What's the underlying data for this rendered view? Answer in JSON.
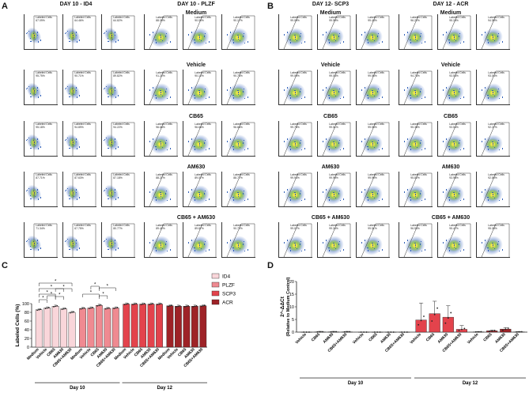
{
  "panels": {
    "A": {
      "letter": "A",
      "groups": [
        {
          "title": "DAY 10 - ID4",
          "mode": "a",
          "rows": [
            [
              "67.09%",
              "64.46%",
              "64.82%"
            ],
            [
              "95.75%",
              "90.71%",
              "89.82%"
            ],
            [
              "95.18%",
              "94.89%",
              "94.22%"
            ],
            [
              "87.71%",
              "87.63%",
              "87.18%"
            ],
            [
              "71.34%",
              "67.75%",
              "80.77%"
            ]
          ]
        },
        {
          "title": "DAY 10 - PLZF",
          "mode": "b",
          "rows": [
            [
              "88.09%",
              "90.00%",
              "90.17%"
            ],
            [
              "91.22%",
              "90.12%",
              "90.73%"
            ],
            [
              "96.66%",
              "96.66%",
              "96.66%"
            ],
            [
              "88.27%",
              "89.07%",
              "88.77%"
            ],
            [
              "89.42%",
              "89.87%",
              "90.72%"
            ]
          ]
        }
      ]
    },
    "B": {
      "letter": "B",
      "groups": [
        {
          "title": "DAY 12- SCP3",
          "mode": "b",
          "rows": [
            [
              "99.09%",
              "99.99%",
              "99.43%"
            ],
            [
              "99.09%",
              "99.03%",
              "99.55%"
            ],
            [
              "99.78%",
              "99.51%",
              "99.55%"
            ],
            [
              "99.94%",
              "99.99%",
              "99.99%"
            ],
            [
              "99.07%",
              "99.34%",
              "99.51%"
            ]
          ]
        },
        {
          "title": "DAY 12 - ACR",
          "mode": "b",
          "rows": [
            [
              "96.22%",
              "95.15%",
              "94.59%"
            ],
            [
              "94.73%",
              "93.53%",
              "93.04%"
            ],
            [
              "95.38%",
              "93.54%",
              "92.27%"
            ],
            [
              "95.82%",
              "93.98%",
              "92.80%"
            ],
            [
              "96.53%",
              "95.47%",
              "95.05%"
            ]
          ]
        }
      ]
    },
    "C": {
      "letter": "C"
    },
    "D": {
      "letter": "D"
    }
  },
  "conditions": [
    "Medium",
    "Vehicle",
    "CB65",
    "AM630",
    "CB65 + AM630"
  ],
  "gate_label": "Labeled Cells",
  "colors": {
    "ID4": "#f9d6da",
    "PLZF": "#ef8a91",
    "SCP3": "#e3434c",
    "ACR": "#9e2327",
    "flow_blue": "#2f5fb8",
    "flow_green": "#9fd233",
    "flow_yellow": "#f4e64a"
  },
  "chart_data": [
    {
      "type": "bar",
      "panel": "C",
      "ylabel": "Labeled Cells (%)",
      "ylim": [
        0,
        100
      ],
      "yticks": [
        "0",
        "20",
        "40",
        "60",
        "80",
        "100"
      ],
      "legend": [
        "ID4",
        "PLZF",
        "SCP3",
        "ACR"
      ],
      "categories": [
        "Medium",
        "Vehicle",
        "CB65",
        "AM630",
        "CB65+AM630"
      ],
      "groups": [
        {
          "label": "Day 10",
          "series": [
            {
              "name": "ID4",
              "values": [
                86,
                90,
                94,
                88,
                80
              ]
            },
            {
              "name": "PLZF",
              "values": [
                89,
                90,
                96,
                89,
                90
              ]
            }
          ]
        },
        {
          "label": "Day 12",
          "series": [
            {
              "name": "SCP3",
              "values": [
                99,
                99,
                99,
                99,
                99
              ]
            },
            {
              "name": "ACR",
              "values": [
                95,
                94,
                94,
                94,
                95
              ]
            }
          ]
        }
      ],
      "significance_marker": "*"
    },
    {
      "type": "bar",
      "panel": "D",
      "ylabel": "2^-ΔΔCt",
      "ylabel2": "(Relative to Medium Control)",
      "ylim": [
        0,
        20
      ],
      "yticks": [
        "0",
        "5",
        "10",
        "15",
        "20"
      ],
      "categories": [
        "Vehicle",
        "CB65",
        "AM630",
        "CB65+AM630"
      ],
      "groups": [
        {
          "label": "Day 10",
          "series": [
            {
              "name": "ID4",
              "values": [
                0,
                0.1,
                0.1,
                0.1
              ]
            },
            {
              "name": "PLZF",
              "values": [
                0,
                0,
                0,
                0
              ]
            }
          ]
        },
        {
          "label": "Day 12",
          "series": [
            {
              "name": "SCP3",
              "values": [
                4.8,
                7.3,
                5.9,
                1.1
              ]
            },
            {
              "name": "ACR",
              "values": [
                0.1,
                0.5,
                1.2,
                0.1
              ]
            }
          ]
        }
      ],
      "error_upper": [
        [
          0,
          0.3,
          0.3,
          0.3
        ],
        [
          0,
          0,
          0,
          0
        ],
        [
          11.5,
          12.2,
          10.4,
          2.6
        ],
        [
          0.2,
          0.8,
          1.8,
          0.2
        ]
      ],
      "significance_marker": "*"
    }
  ]
}
